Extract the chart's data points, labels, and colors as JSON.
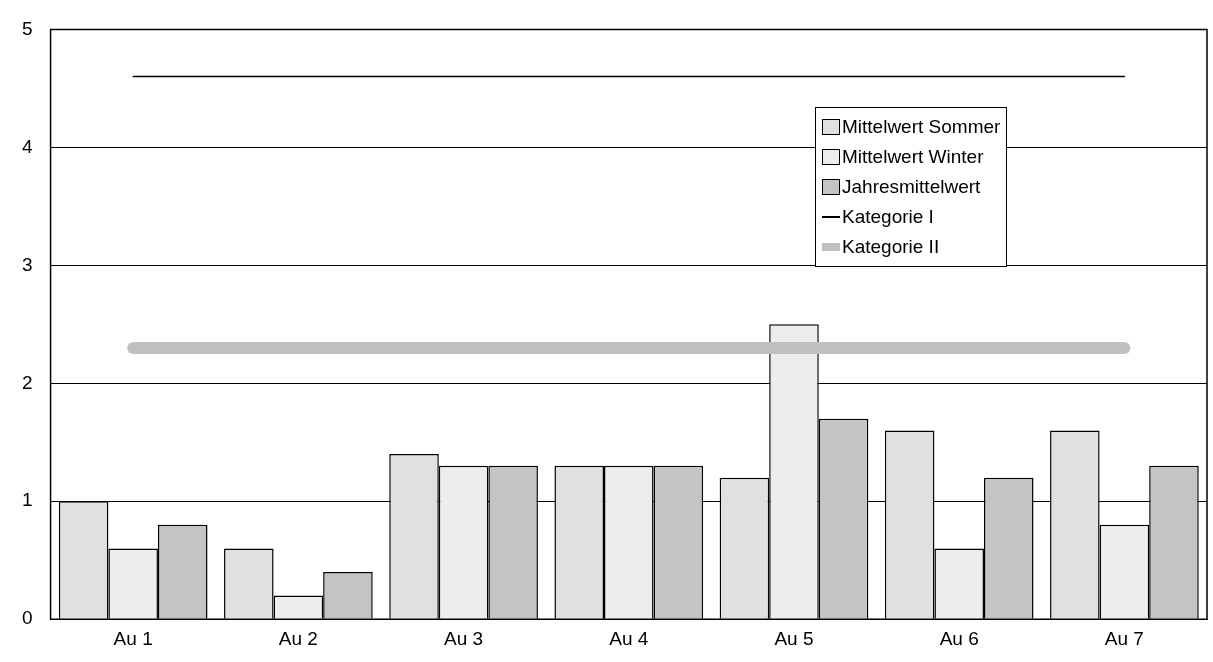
{
  "chart_data": {
    "type": "bar",
    "categories": [
      "Au 1",
      "Au 2",
      "Au 3",
      "Au 4",
      "Au 5",
      "Au 6",
      "Au 7"
    ],
    "series": [
      {
        "name": "Mittelwert Sommer",
        "color": "#e0e0e0",
        "values": [
          1.0,
          0.6,
          1.4,
          1.3,
          1.2,
          1.6,
          1.6
        ]
      },
      {
        "name": "Mittelwert Winter",
        "color": "#ededed",
        "values": [
          0.6,
          0.2,
          1.3,
          1.3,
          2.5,
          0.6,
          0.8
        ]
      },
      {
        "name": "Jahresmittelwert",
        "color": "#c4c4c4",
        "values": [
          0.8,
          0.4,
          1.3,
          1.3,
          1.7,
          1.2,
          1.3
        ]
      },
      {
        "name": "Kategorie I",
        "type": "line",
        "color": "#000000",
        "values": [
          4.6,
          4.6,
          4.6,
          4.6,
          4.6,
          4.6,
          4.6
        ]
      },
      {
        "name": "Kategorie II",
        "type": "line",
        "color": "#c0c0c0",
        "values": [
          2.3,
          2.3,
          2.3,
          2.3,
          2.3,
          2.3,
          2.3
        ]
      }
    ],
    "ylim": [
      0,
      5
    ],
    "yticks": [
      0,
      1,
      2,
      3,
      4,
      5
    ],
    "grid": "y",
    "legend": "top right",
    "marker": "none",
    "line_style": "solid"
  }
}
